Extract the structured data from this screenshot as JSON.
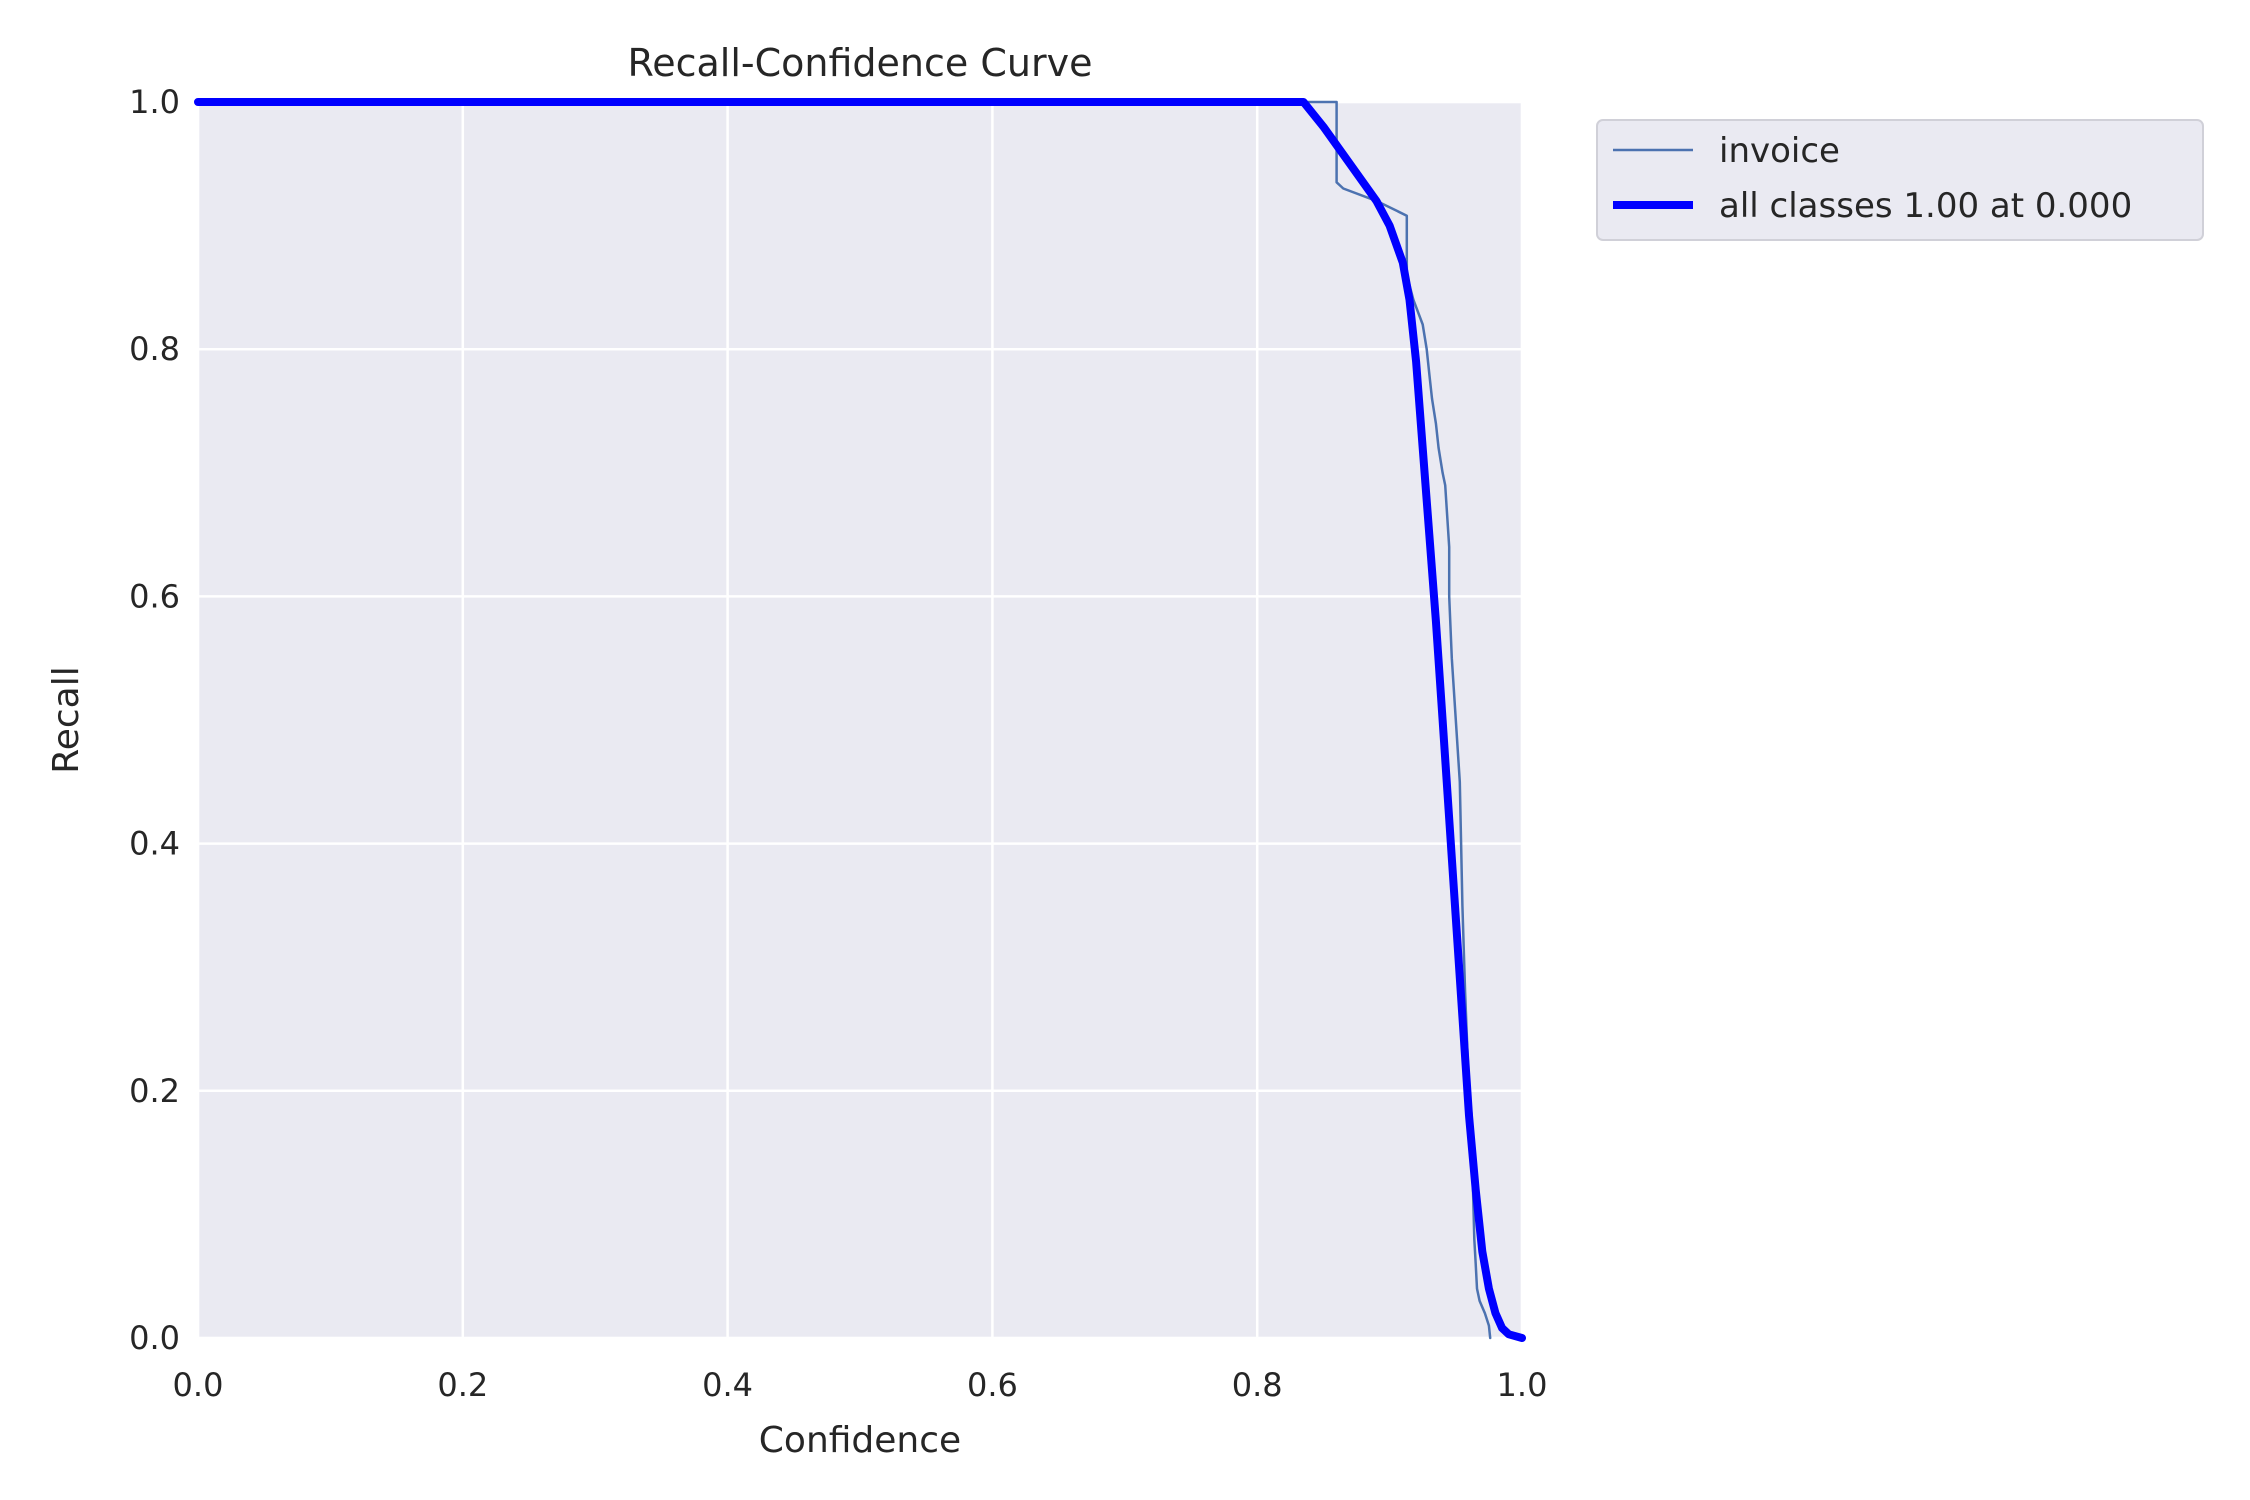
{
  "chart_data": {
    "type": "line",
    "title": "Recall-Confidence Curve",
    "xlabel": "Confidence",
    "ylabel": "Recall",
    "xlim": [
      0,
      1
    ],
    "ylim": [
      0,
      1
    ],
    "xticks": [
      0.0,
      0.2,
      0.4,
      0.6,
      0.8,
      1.0
    ],
    "yticks": [
      0.0,
      0.2,
      0.4,
      0.6,
      0.8,
      1.0
    ],
    "xtick_labels": [
      "0.0",
      "0.2",
      "0.4",
      "0.6",
      "0.8",
      "1.0"
    ],
    "ytick_labels": [
      "0.0",
      "0.2",
      "0.4",
      "0.6",
      "0.8",
      "1.0"
    ],
    "grid": true,
    "legend_position": "outside-top-right",
    "series": [
      {
        "name": "invoice",
        "color": "#4c72b0",
        "style": "thin",
        "x": [
          0.0,
          0.86,
          0.86,
          0.865,
          0.89,
          0.913,
          0.913,
          0.918,
          0.925,
          0.928,
          0.93,
          0.932,
          0.935,
          0.937,
          0.94,
          0.942,
          0.945,
          0.945,
          0.947,
          0.95,
          0.953,
          0.954,
          0.955,
          0.957,
          0.96,
          0.962,
          0.963,
          0.964,
          0.965,
          0.966,
          0.968,
          0.972,
          0.975,
          0.976
        ],
        "y": [
          1.0,
          1.0,
          0.935,
          0.93,
          0.92,
          0.908,
          0.86,
          0.84,
          0.82,
          0.8,
          0.78,
          0.76,
          0.74,
          0.72,
          0.7,
          0.69,
          0.64,
          0.6,
          0.55,
          0.5,
          0.45,
          0.4,
          0.35,
          0.28,
          0.2,
          0.18,
          0.12,
          0.08,
          0.06,
          0.04,
          0.03,
          0.02,
          0.01,
          0.0
        ]
      },
      {
        "name": "all classes 1.00 at 0.000",
        "color": "#0000ff",
        "style": "thick",
        "x": [
          0.0,
          0.835,
          0.85,
          0.87,
          0.89,
          0.9,
          0.91,
          0.915,
          0.92,
          0.925,
          0.93,
          0.935,
          0.94,
          0.945,
          0.95,
          0.955,
          0.96,
          0.965,
          0.97,
          0.975,
          0.98,
          0.985,
          0.99,
          1.0
        ],
        "y": [
          1.0,
          1.0,
          0.98,
          0.95,
          0.92,
          0.9,
          0.87,
          0.84,
          0.79,
          0.72,
          0.65,
          0.58,
          0.5,
          0.42,
          0.34,
          0.26,
          0.18,
          0.12,
          0.07,
          0.04,
          0.02,
          0.008,
          0.003,
          0.0
        ]
      }
    ]
  }
}
